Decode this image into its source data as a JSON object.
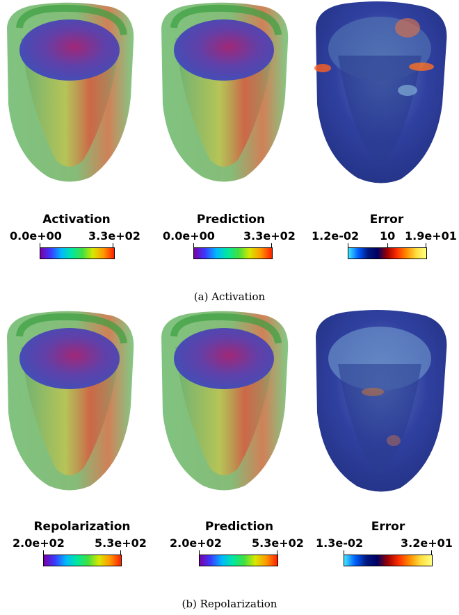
{
  "panels": {
    "activation": {
      "caption": "(a) Activation",
      "colorbars": [
        {
          "title": "Activation",
          "min_label": "0.0e+00",
          "mid_label": "",
          "max_label": "3.3e+02",
          "scheme": "rainbow"
        },
        {
          "title": "Prediction",
          "min_label": "0.0e+00",
          "mid_label": "",
          "max_label": "3.3e+02",
          "scheme": "rainbow"
        },
        {
          "title": "Error",
          "min_label": "1.2e-02",
          "mid_label": "10",
          "max_label": "1.9e+01",
          "scheme": "error"
        }
      ]
    },
    "repolarization": {
      "caption": "(b) Repolarization",
      "colorbars": [
        {
          "title": "Repolarization",
          "min_label": "2.0e+02",
          "mid_label": "",
          "max_label": "5.3e+02",
          "scheme": "rainbow"
        },
        {
          "title": "Prediction",
          "min_label": "2.0e+02",
          "mid_label": "",
          "max_label": "5.3e+02",
          "scheme": "rainbow"
        },
        {
          "title": "Error",
          "min_label": "1.3e-02",
          "mid_label": "",
          "max_label": "3.2e+01",
          "scheme": "error"
        }
      ]
    }
  },
  "colors": {
    "rainbow": [
      "#7a00a8",
      "#3a3aff",
      "#00b8ff",
      "#00e8a0",
      "#40e040",
      "#d8e800",
      "#ff9800",
      "#ff2000"
    ],
    "error": [
      "#40e8ff",
      "#0060ff",
      "#001880",
      "#000060",
      "#a00000",
      "#ff3000",
      "#ff9000",
      "#ffe040",
      "#ffff80"
    ]
  }
}
